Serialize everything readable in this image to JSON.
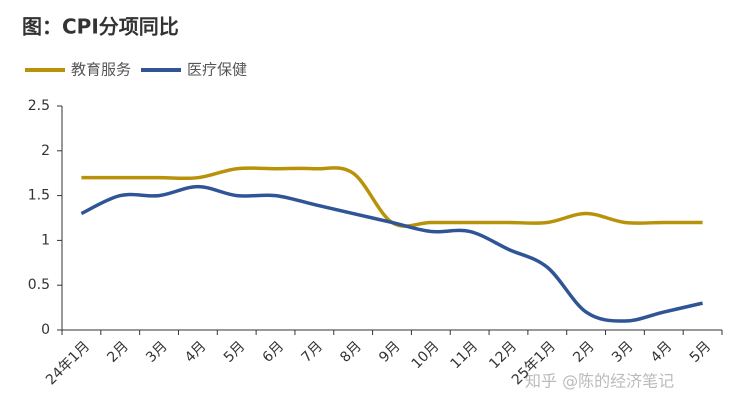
{
  "chart_data": {
    "type": "line",
    "title": "图：CPI分项同比",
    "categories": [
      "24年1月",
      "2月",
      "3月",
      "4月",
      "5月",
      "6月",
      "7月",
      "8月",
      "9月",
      "10月",
      "11月",
      "12月",
      "25年1月",
      "2月",
      "3月",
      "4月",
      "5月"
    ],
    "series": [
      {
        "name": "教育服务",
        "color": "#b8930a",
        "values": [
          1.7,
          1.7,
          1.7,
          1.7,
          1.8,
          1.8,
          1.8,
          1.75,
          1.2,
          1.2,
          1.2,
          1.2,
          1.2,
          1.3,
          1.2,
          1.2,
          1.2
        ]
      },
      {
        "name": "医疗保健",
        "color": "#2f5597",
        "values": [
          1.3,
          1.5,
          1.5,
          1.6,
          1.5,
          1.5,
          1.4,
          1.3,
          1.2,
          1.1,
          1.1,
          0.9,
          0.7,
          0.2,
          0.1,
          0.2,
          0.3
        ]
      }
    ],
    "ylim": [
      0,
      2.5
    ],
    "yticks": [
      0,
      0.5,
      1,
      1.5,
      2,
      2.5
    ],
    "grid": false,
    "watermark": "知乎 @陈的经济笔记"
  }
}
